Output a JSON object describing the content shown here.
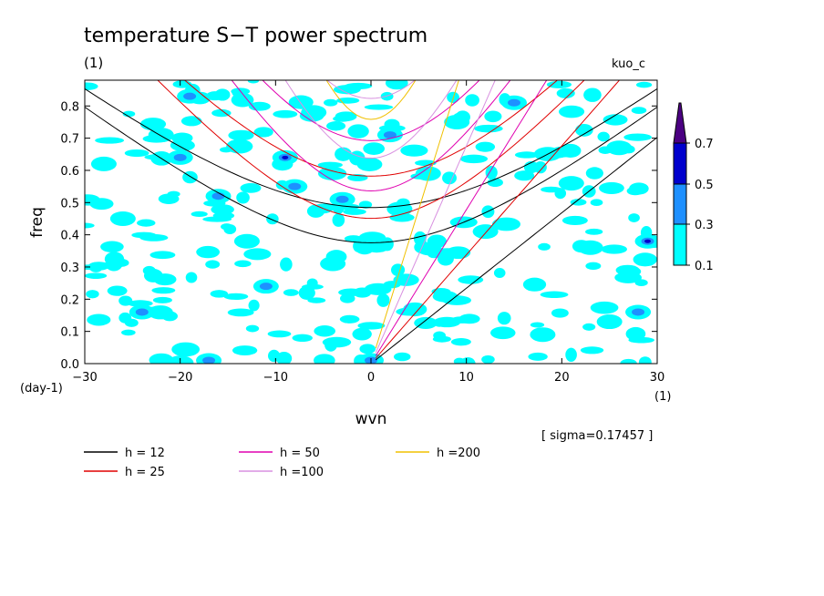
{
  "chart_data": {
    "type": "heatmap",
    "title": "temperature S−T power spectrum",
    "title_unit": "(1)",
    "subtitle_right": "kuo_c",
    "xlabel": "wvn",
    "xunit": "(1)",
    "ylabel": "freq",
    "yunit": "(day-1)",
    "xlim": [
      -30,
      30
    ],
    "ylim": [
      0.0,
      0.88
    ],
    "x_ticks": [
      -30,
      -20,
      -10,
      0,
      10,
      20,
      30
    ],
    "x_tick_labels": [
      "−30",
      "−20",
      "−10",
      "0",
      "10",
      "20",
      "30"
    ],
    "y_ticks": [
      0.0,
      0.1,
      0.2,
      0.3,
      0.4,
      0.5,
      0.6,
      0.7,
      0.8
    ],
    "y_tick_labels": [
      "0.0",
      "0.1",
      "0.2",
      "0.3",
      "0.4",
      "0.5",
      "0.6",
      "0.7",
      "0.8"
    ],
    "sigma_note": "[ sigma=0.17457 ]",
    "colorbar": {
      "levels": [
        "0.1",
        "0.3",
        "0.5",
        "0.7"
      ],
      "colors": [
        "#00ffff",
        "#1e90ff",
        "#0000cd",
        "#4b0082"
      ]
    },
    "dispersion_curves": [
      {
        "name": "h = 12",
        "h": 12,
        "color": "#000000"
      },
      {
        "name": "h = 25",
        "h": 25,
        "color": "#e00000"
      },
      {
        "name": "h = 50",
        "h": 50,
        "color": "#e000b0"
      },
      {
        "name": "h =100",
        "h": 100,
        "color": "#d890e0"
      },
      {
        "name": "h =200",
        "h": 200,
        "color": "#f0c000"
      }
    ],
    "power_blobs": [
      {
        "x": -28,
        "y": 0.62,
        "level": 1
      },
      {
        "x": -26,
        "y": 0.45,
        "level": 1
      },
      {
        "x": -24,
        "y": 0.16,
        "level": 2
      },
      {
        "x": -22,
        "y": 0.71,
        "level": 1
      },
      {
        "x": -20,
        "y": 0.64,
        "level": 2
      },
      {
        "x": -19,
        "y": 0.83,
        "level": 2
      },
      {
        "x": -17,
        "y": 0.01,
        "level": 2
      },
      {
        "x": -16,
        "y": 0.52,
        "level": 2
      },
      {
        "x": -13,
        "y": 0.38,
        "level": 1
      },
      {
        "x": -11,
        "y": 0.24,
        "level": 2
      },
      {
        "x": -9,
        "y": 0.64,
        "level": 3
      },
      {
        "x": -8,
        "y": 0.55,
        "level": 2
      },
      {
        "x": -6,
        "y": 0.78,
        "level": 1
      },
      {
        "x": -4,
        "y": 0.31,
        "level": 1
      },
      {
        "x": -3,
        "y": 0.51,
        "level": 2
      },
      {
        "x": 0,
        "y": 0.01,
        "level": 2
      },
      {
        "x": 2,
        "y": 0.71,
        "level": 2
      },
      {
        "x": 3,
        "y": 0.48,
        "level": 1
      },
      {
        "x": 6,
        "y": 0.59,
        "level": 1
      },
      {
        "x": 9,
        "y": 0.75,
        "level": 1
      },
      {
        "x": 12,
        "y": 0.41,
        "level": 1
      },
      {
        "x": 15,
        "y": 0.81,
        "level": 2
      },
      {
        "x": 18,
        "y": 0.09,
        "level": 1
      },
      {
        "x": 21,
        "y": 0.56,
        "level": 1
      },
      {
        "x": 23,
        "y": 0.36,
        "level": 1
      },
      {
        "x": 25,
        "y": 0.13,
        "level": 1
      },
      {
        "x": 26,
        "y": 0.67,
        "level": 1
      },
      {
        "x": 28,
        "y": 0.16,
        "level": 2
      },
      {
        "x": 29,
        "y": 0.38,
        "level": 3
      }
    ]
  }
}
